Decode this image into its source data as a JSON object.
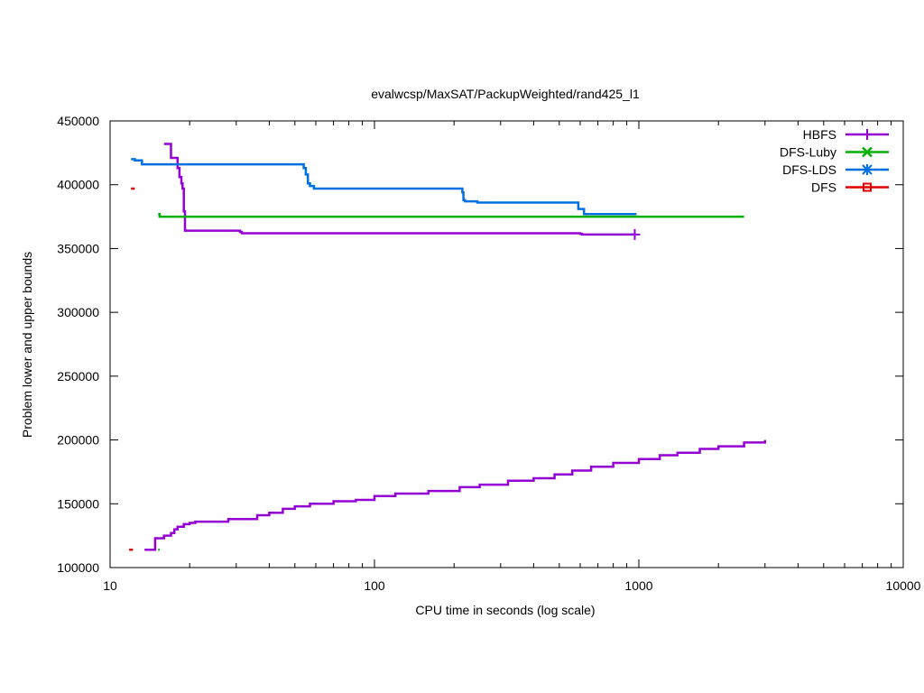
{
  "chart_data": {
    "type": "line",
    "title": "evalwcsp/MaxSAT/PackupWeighted/rand425_l1",
    "xlabel": "CPU time in seconds (log scale)",
    "ylabel": "Problem lower and upper bounds",
    "xscale": "log",
    "xlim": [
      10,
      10000
    ],
    "ylim": [
      100000,
      450000
    ],
    "xticks": [
      10,
      100,
      1000,
      10000
    ],
    "yticks": [
      100000,
      150000,
      200000,
      250000,
      300000,
      350000,
      400000,
      450000
    ],
    "grid": false,
    "legend_position": "top-right",
    "series": [
      {
        "name": "HBFS",
        "color": "#9400d3",
        "marker": "plus",
        "marker_at": [
          965,
          361000
        ],
        "upper": [
          [
            16.0,
            432000
          ],
          [
            17.0,
            432000
          ],
          [
            17.0,
            421000
          ],
          [
            18.0,
            413000
          ],
          [
            18.3,
            406000
          ],
          [
            18.6,
            401000
          ],
          [
            18.8,
            397000
          ],
          [
            19.0,
            379000
          ],
          [
            19.2,
            364000
          ],
          [
            31.0,
            363000
          ],
          [
            31.5,
            362000
          ],
          [
            600,
            361500
          ],
          [
            610,
            361000
          ],
          [
            965,
            361000
          ]
        ],
        "lower": [
          [
            13.5,
            114000
          ],
          [
            14.8,
            114000
          ],
          [
            14.8,
            123000
          ],
          [
            16.0,
            123000
          ],
          [
            16.0,
            125000
          ],
          [
            17.0,
            127000
          ],
          [
            17.5,
            130000
          ],
          [
            18.0,
            132000
          ],
          [
            19.0,
            134000
          ],
          [
            20.0,
            135000
          ],
          [
            21.0,
            136000
          ],
          [
            28.0,
            136000
          ],
          [
            28.0,
            138000
          ],
          [
            36.0,
            138000
          ],
          [
            36.0,
            141000
          ],
          [
            40.0,
            143000
          ],
          [
            45.0,
            146000
          ],
          [
            50.0,
            148000
          ],
          [
            57.0,
            150000
          ],
          [
            70.0,
            152000
          ],
          [
            85.0,
            153000
          ],
          [
            100.0,
            156000
          ],
          [
            120.0,
            158000
          ],
          [
            160.0,
            160000
          ],
          [
            210.0,
            163000
          ],
          [
            250.0,
            165000
          ],
          [
            320.0,
            168000
          ],
          [
            400.0,
            170000
          ],
          [
            480.0,
            173000
          ],
          [
            560.0,
            176000
          ],
          [
            660.0,
            179000
          ],
          [
            800.0,
            182000
          ],
          [
            1000.0,
            185000
          ],
          [
            1200.0,
            188000
          ],
          [
            1400.0,
            190000
          ],
          [
            1700.0,
            193000
          ],
          [
            2000.0,
            195000
          ],
          [
            2500.0,
            198000
          ],
          [
            3000.0,
            198000
          ],
          [
            3000.0,
            200000
          ]
        ]
      },
      {
        "name": "DFS-Luby",
        "color": "#00b000",
        "marker": "cross",
        "upper": [
          [
            15.2,
            377000
          ],
          [
            15.4,
            377000
          ],
          [
            15.4,
            375000
          ],
          [
            2500,
            375000
          ]
        ],
        "lower": [
          [
            15.2,
            114000
          ],
          [
            15.4,
            114000
          ]
        ]
      },
      {
        "name": "DFS-LDS",
        "color": "#0070e0",
        "marker": "star",
        "upper": [
          [
            12.0,
            420000
          ],
          [
            12.4,
            420000
          ],
          [
            12.4,
            419000
          ],
          [
            13.2,
            419000
          ],
          [
            13.2,
            416000
          ],
          [
            54.0,
            416000
          ],
          [
            54.0,
            413000
          ],
          [
            55.0,
            413000
          ],
          [
            55.0,
            408000
          ],
          [
            56.0,
            408000
          ],
          [
            56.0,
            401000
          ],
          [
            57.0,
            401000
          ],
          [
            57.0,
            399000
          ],
          [
            59.0,
            399000
          ],
          [
            59.0,
            397000
          ],
          [
            215.0,
            397000
          ],
          [
            215.0,
            394000
          ],
          [
            217.0,
            394000
          ],
          [
            217.0,
            388000
          ],
          [
            220.0,
            387000
          ],
          [
            245.0,
            387000
          ],
          [
            245.0,
            386000
          ],
          [
            590.0,
            386000
          ],
          [
            590.0,
            381000
          ],
          [
            620.0,
            381000
          ],
          [
            620.0,
            377000
          ],
          [
            980.0,
            377000
          ]
        ]
      },
      {
        "name": "DFS",
        "color": "#e00000",
        "marker": "square",
        "upper": [
          [
            12.0,
            397000
          ],
          [
            12.4,
            397000
          ]
        ],
        "lower": [
          [
            11.8,
            114000
          ],
          [
            12.2,
            114000
          ]
        ]
      }
    ]
  }
}
